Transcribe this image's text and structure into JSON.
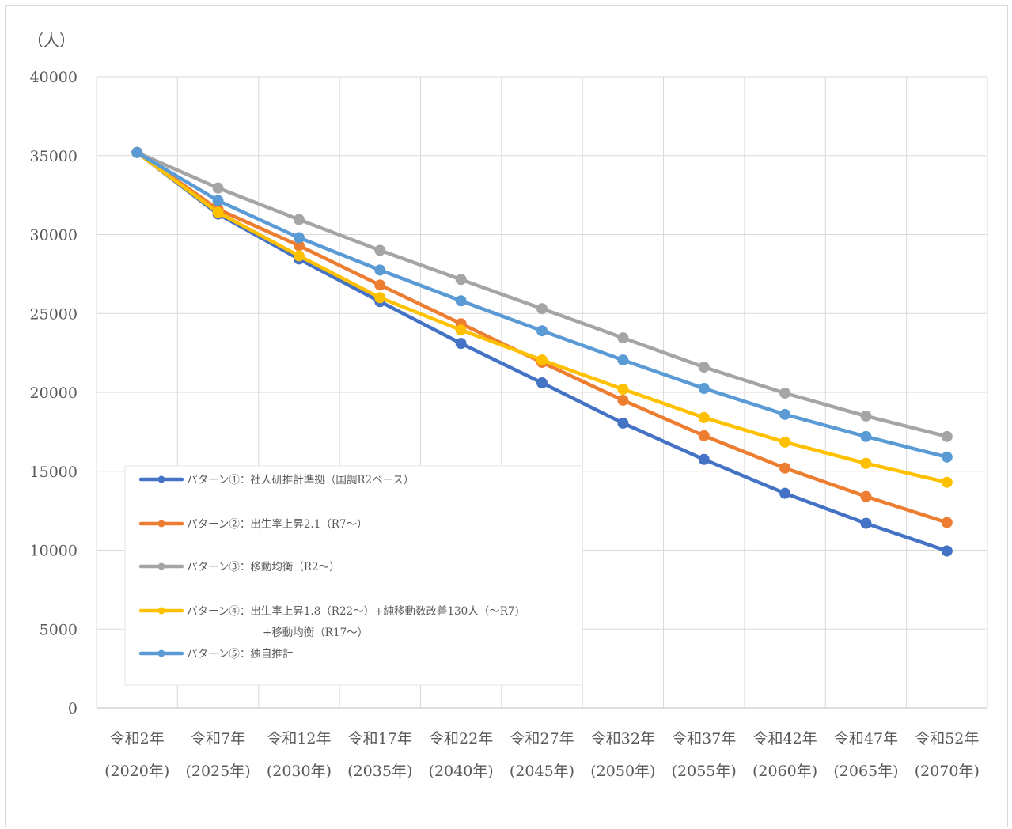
{
  "chart_data": {
    "type": "line",
    "unit_label": "（人）",
    "categories": [
      [
        "令和2年",
        "(2020年)"
      ],
      [
        "令和7年",
        "(2025年)"
      ],
      [
        "令和12年",
        "(2030年)"
      ],
      [
        "令和17年",
        "(2035年)"
      ],
      [
        "令和22年",
        "(2040年)"
      ],
      [
        "令和27年",
        "(2045年)"
      ],
      [
        "令和32年",
        "(2050年)"
      ],
      [
        "令和37年",
        "(2055年)"
      ],
      [
        "令和42年",
        "(2060年)"
      ],
      [
        "令和47年",
        "(2065年)"
      ],
      [
        "令和52年",
        "(2070年)"
      ]
    ],
    "ylim": [
      0,
      40000
    ],
    "yticks": [
      0,
      5000,
      10000,
      15000,
      20000,
      25000,
      30000,
      35000,
      40000
    ],
    "grid": true,
    "legend_position": "lower-left inside",
    "series": [
      {
        "name": [
          "パターン①：社人研推計準拠（国調R2ベース）"
        ],
        "color": "#4472c4",
        "values": [
          35200,
          31300,
          28450,
          25750,
          23100,
          20600,
          18050,
          15750,
          13600,
          11700,
          9950
        ]
      },
      {
        "name": [
          "パターン②：出生率上昇2.1（R7～）"
        ],
        "color": "#ed7d31",
        "values": [
          35200,
          31600,
          29300,
          26800,
          24350,
          21900,
          19500,
          17250,
          15200,
          13400,
          11750
        ]
      },
      {
        "name": [
          "パターン③：移動均衡（R2～）"
        ],
        "color": "#a5a5a5",
        "values": [
          35200,
          32950,
          30950,
          29000,
          27150,
          25300,
          23450,
          21600,
          19950,
          18500,
          17200
        ]
      },
      {
        "name": [
          "パターン④：出生率上昇1.8（R22～）+純移動数改善130人（～R7)",
          "+移動均衡（R17～）"
        ],
        "color": "#ffc000",
        "values": [
          35200,
          31400,
          28650,
          26000,
          23950,
          22050,
          20200,
          18400,
          16850,
          15500,
          14300
        ]
      },
      {
        "name": [
          "パターン⑤：独自推計"
        ],
        "color": "#5b9bd5",
        "values": [
          35200,
          32150,
          29800,
          27750,
          25800,
          23900,
          22050,
          20250,
          18600,
          17200,
          15900
        ]
      }
    ]
  }
}
